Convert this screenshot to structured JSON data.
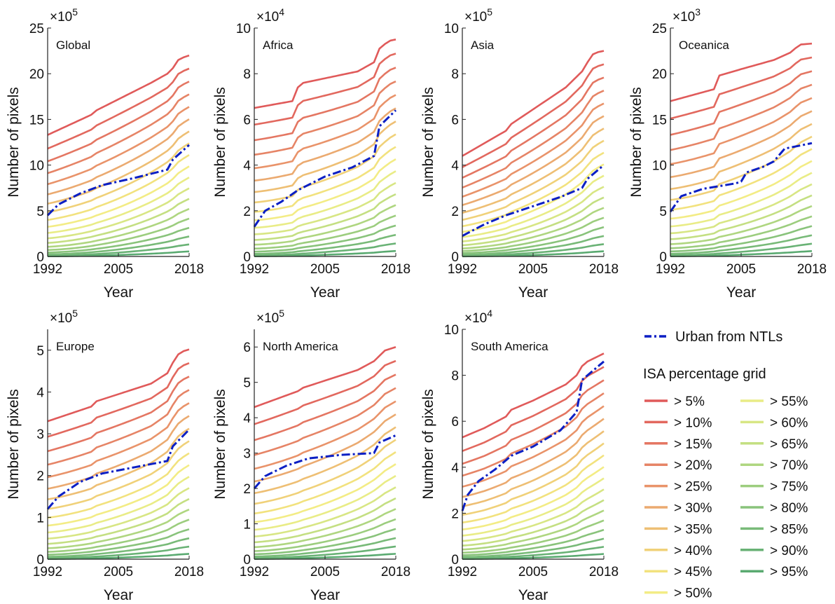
{
  "figure": {
    "xlabel": "Year",
    "ylabel": "Number of pixels",
    "xticks": [
      "1992",
      "2005",
      "2018"
    ],
    "legend": {
      "ntl_label": "Urban from NTLs",
      "isa_title": "ISA percentage grid",
      "col1": [
        "> 5%",
        "> 10%",
        "> 15%",
        "> 20%",
        "> 25%",
        "> 30%",
        "> 35%",
        "> 40%",
        "> 45%",
        "> 50%"
      ],
      "col2": [
        "> 55%",
        "> 60%",
        "> 65%",
        "> 70%",
        "> 75%",
        "> 80%",
        "> 85%",
        "> 90%",
        "> 95%"
      ]
    },
    "ntl_color": "#0b1fc4",
    "isa_colors": [
      "#e05a5a",
      "#e2685e",
      "#e47662",
      "#e68466",
      "#e9936a",
      "#ebaa70",
      "#eebf74",
      "#f0d179",
      "#f2e27e",
      "#f3ec85",
      "#e9ec86",
      "#d8e684",
      "#c4df82",
      "#afd680",
      "#9ccd7e",
      "#89c37b",
      "#78ba78",
      "#69b275",
      "#5aaa71"
    ]
  },
  "chart_data": [
    {
      "type": "line",
      "title": "Global",
      "multiplier": "×10",
      "exponent": "5",
      "ylim": [
        0,
        25
      ],
      "yticks": [
        "0",
        "5",
        "10",
        "15",
        "20",
        "25"
      ],
      "x": [
        1992,
        2000,
        2001,
        2011,
        2014,
        2015,
        2016,
        2017,
        2018
      ],
      "isa_top": [
        13.3,
        15.5,
        16.0,
        19.0,
        20.0,
        20.6,
        21.5,
        21.8,
        22.0
      ],
      "ntl": {
        "x": [
          1992,
          1994,
          1998,
          2002,
          2008,
          2014,
          2015,
          2018
        ],
        "y": [
          4.5,
          5.7,
          6.9,
          7.8,
          8.6,
          9.5,
          10.6,
          12.2
        ]
      }
    },
    {
      "type": "line",
      "title": "Africa",
      "multiplier": "×10",
      "exponent": "4",
      "ylim": [
        0,
        10
      ],
      "yticks": [
        "0",
        "2",
        "4",
        "6",
        "8",
        "10"
      ],
      "x": [
        1992,
        1999,
        2000,
        2001,
        2011,
        2014,
        2015,
        2016,
        2017,
        2018
      ],
      "isa_top": [
        6.5,
        6.8,
        7.4,
        7.6,
        8.1,
        8.5,
        9.1,
        9.3,
        9.45,
        9.5
      ],
      "ntl": {
        "x": [
          1992,
          1994,
          1997,
          2000,
          2005,
          2010,
          2014,
          2015,
          2018
        ],
        "y": [
          1.3,
          2.0,
          2.4,
          2.9,
          3.5,
          3.9,
          4.4,
          5.7,
          6.4
        ]
      }
    },
    {
      "type": "line",
      "title": "Asia",
      "multiplier": "×10",
      "exponent": "5",
      "ylim": [
        0,
        10
      ],
      "yticks": [
        "0",
        "2",
        "4",
        "6",
        "8",
        "10"
      ],
      "x": [
        1992,
        2000,
        2001,
        2011,
        2014,
        2015,
        2016,
        2017,
        2018
      ],
      "isa_top": [
        4.4,
        5.5,
        5.8,
        7.4,
        8.1,
        8.5,
        8.85,
        8.95,
        9.0
      ],
      "ntl": {
        "x": [
          1992,
          1996,
          2000,
          2005,
          2010,
          2014,
          2015,
          2018
        ],
        "y": [
          0.9,
          1.4,
          1.8,
          2.2,
          2.6,
          3.0,
          3.4,
          4.0
        ]
      }
    },
    {
      "type": "line",
      "title": "Oceanica",
      "multiplier": "×10",
      "exponent": "3",
      "ylim": [
        0,
        25
      ],
      "yticks": [
        "0",
        "5",
        "10",
        "15",
        "20",
        "25"
      ],
      "x": [
        1992,
        2000,
        2001,
        2005,
        2011,
        2014,
        2015,
        2016,
        2018
      ],
      "isa_top": [
        17.0,
        18.3,
        19.8,
        20.5,
        21.5,
        22.3,
        22.8,
        23.2,
        23.3
      ],
      "ntl": {
        "x": [
          1992,
          1994,
          1998,
          2004,
          2005,
          2006,
          2009,
          2011,
          2013,
          2018
        ],
        "y": [
          4.9,
          6.6,
          7.4,
          8.0,
          8.2,
          9.2,
          9.8,
          10.4,
          11.8,
          12.4
        ]
      }
    },
    {
      "type": "line",
      "title": "Europe",
      "multiplier": "×10",
      "exponent": "5",
      "ylim": [
        0,
        5.5
      ],
      "yticks": [
        "0",
        "1",
        "2",
        "3",
        "4",
        "5"
      ],
      "x": [
        1992,
        2000,
        2001,
        2011,
        2014,
        2015,
        2016,
        2017,
        2018
      ],
      "isa_top": [
        3.3,
        3.65,
        3.78,
        4.2,
        4.45,
        4.7,
        4.9,
        4.98,
        5.02
      ],
      "ntl": {
        "x": [
          1992,
          1994,
          1998,
          2002,
          2008,
          2014,
          2015,
          2018
        ],
        "y": [
          1.2,
          1.5,
          1.85,
          2.05,
          2.2,
          2.35,
          2.7,
          3.1
        ]
      }
    },
    {
      "type": "line",
      "title": "North America",
      "multiplier": "×10",
      "exponent": "5",
      "ylim": [
        0,
        6.5
      ],
      "yticks": [
        "0",
        "1",
        "2",
        "3",
        "4",
        "5",
        "6"
      ],
      "x": [
        1992,
        2000,
        2001,
        2011,
        2014,
        2015,
        2016,
        2017,
        2018
      ],
      "isa_top": [
        4.3,
        4.75,
        4.85,
        5.35,
        5.6,
        5.75,
        5.9,
        5.95,
        6.0
      ],
      "ntl": {
        "x": [
          1992,
          1994,
          1998,
          2002,
          2008,
          2014,
          2015,
          2018
        ],
        "y": [
          2.0,
          2.35,
          2.65,
          2.85,
          2.95,
          3.0,
          3.3,
          3.5
        ]
      }
    },
    {
      "type": "line",
      "title": "South America",
      "multiplier": "×10",
      "exponent": "4",
      "ylim": [
        0,
        10
      ],
      "yticks": [
        "0",
        "2",
        "4",
        "6",
        "8",
        "10"
      ],
      "x": [
        1992,
        1996,
        2000,
        2001,
        2005,
        2011,
        2013,
        2014,
        2015,
        2018
      ],
      "isa_top": [
        5.3,
        5.7,
        6.2,
        6.5,
        6.9,
        7.6,
        8.0,
        8.4,
        8.6,
        8.95
      ],
      "ntl": {
        "x": [
          1992,
          1993,
          1995,
          1998,
          2001,
          2005,
          2010,
          2013,
          2014,
          2015,
          2018
        ],
        "y": [
          2.1,
          2.8,
          3.4,
          3.9,
          4.5,
          4.9,
          5.6,
          6.4,
          7.8,
          8.0,
          8.6
        ]
      }
    }
  ]
}
